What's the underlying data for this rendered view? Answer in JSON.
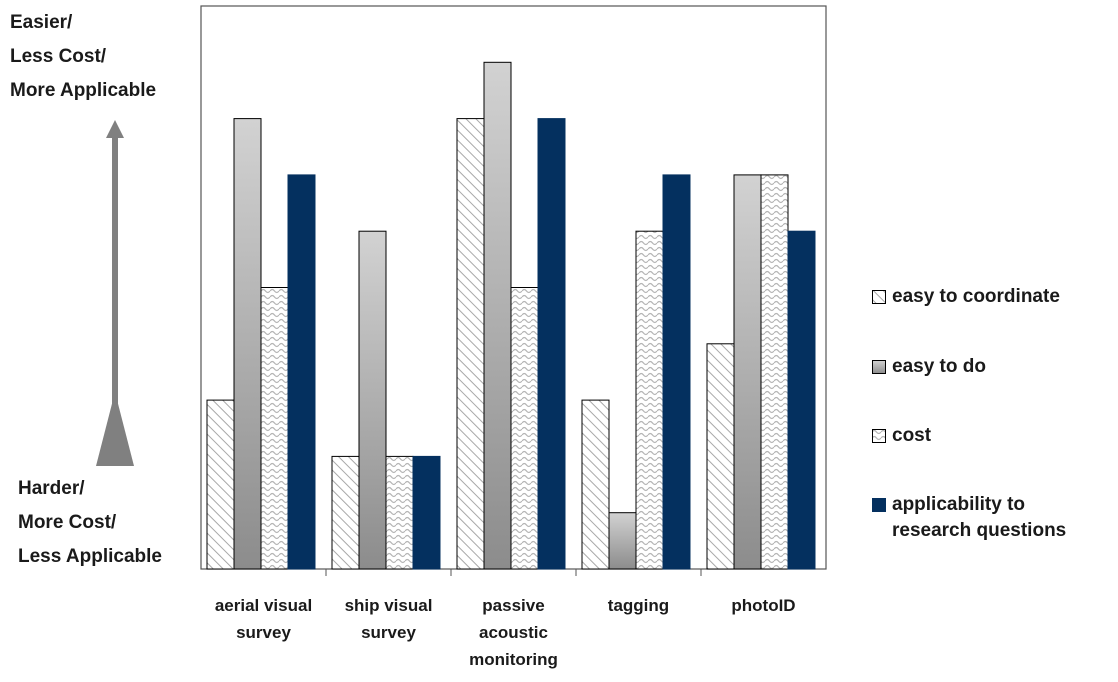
{
  "chart_data": {
    "type": "bar",
    "categories": [
      [
        "aerial visual",
        "survey"
      ],
      [
        "ship visual",
        "survey"
      ],
      [
        "passive",
        "acoustic",
        "monitoring"
      ],
      [
        "tagging"
      ],
      [
        "photoID"
      ]
    ],
    "series": [
      {
        "name": "easy to coordinate",
        "values": [
          3,
          2,
          8,
          3,
          4
        ],
        "pattern": "diagonal-hatch"
      },
      {
        "name": "easy to do",
        "values": [
          8,
          6,
          9,
          1,
          7
        ],
        "pattern": "gray-gradient"
      },
      {
        "name": "cost",
        "values": [
          5,
          2,
          5,
          6,
          7
        ],
        "pattern": "wave"
      },
      {
        "name": "applicability to research questions",
        "values": [
          7,
          2,
          8,
          7,
          6
        ],
        "pattern": "solid"
      }
    ],
    "ylim": [
      0,
      10
    ],
    "grid": false,
    "legend_position": "right",
    "top_label": [
      "Easier/",
      "Less Cost/",
      "More Applicable"
    ],
    "bottom_label": [
      "Harder/",
      "More Cost/",
      "Less Applicable"
    ],
    "colors": {
      "applicability": "#04305f",
      "arrow": "#808080",
      "bar_outline": "#000000"
    }
  },
  "legend": {
    "items": [
      {
        "lines": [
          "easy to coordinate"
        ]
      },
      {
        "lines": [
          "easy to do"
        ]
      },
      {
        "lines": [
          "cost"
        ]
      },
      {
        "lines": [
          "applicability to",
          "research questions"
        ]
      }
    ]
  }
}
